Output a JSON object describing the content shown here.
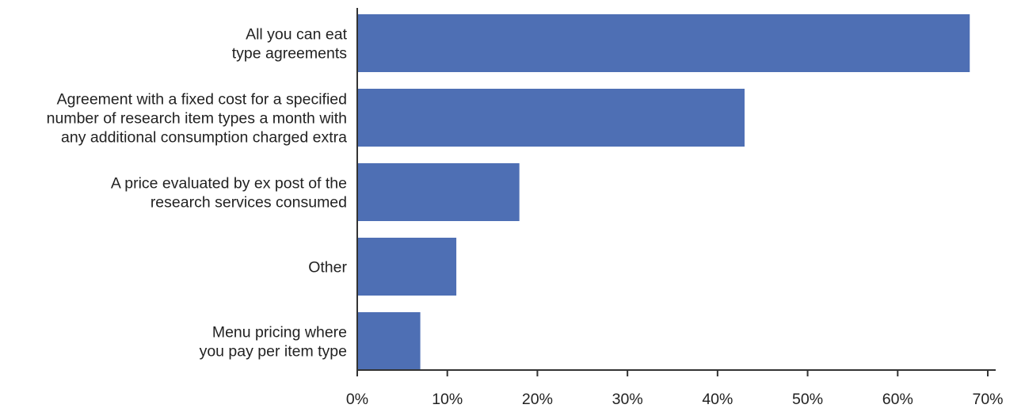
{
  "chart_data": {
    "type": "bar",
    "orientation": "horizontal",
    "title": "",
    "xlabel": "",
    "ylabel": "",
    "categories": [
      [
        "All you can eat",
        "type agreements"
      ],
      [
        "Agreement with a fixed cost for a specified",
        "number of research item types a month with",
        "any additional consumption charged extra"
      ],
      [
        "A price evaluated by ex post of the",
        "research services consumed"
      ],
      [
        "Other"
      ],
      [
        "Menu pricing where",
        "you pay per item type"
      ]
    ],
    "values": [
      68,
      43,
      18,
      11,
      7
    ],
    "xlim": [
      0,
      70
    ],
    "x_ticks": [
      0,
      10,
      20,
      30,
      40,
      50,
      60,
      70
    ],
    "x_tick_labels": [
      "0%",
      "10%",
      "20%",
      "30%",
      "40%",
      "50%",
      "60%",
      "70%"
    ],
    "grid": false,
    "legend": "none",
    "bar_color": "#4e6fb4",
    "axis_color": "#333333"
  }
}
